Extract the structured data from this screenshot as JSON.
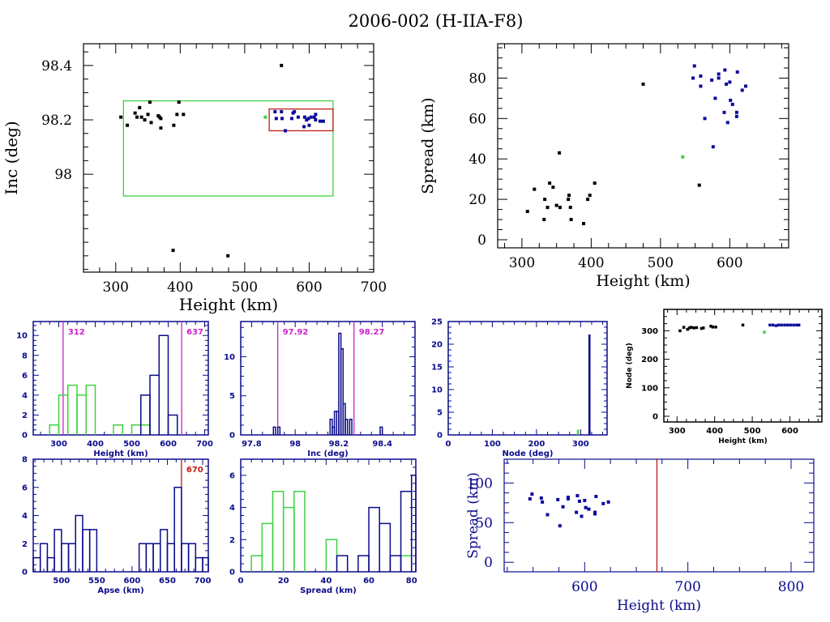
{
  "page_title": "2006-002 (H-IIA-F8)",
  "colors": {
    "black": "#000000",
    "blue": "#0b0b9b",
    "navy": "#0b0b8b",
    "green": "#40d040",
    "magenta": "#cc22cc",
    "red": "#c01818"
  },
  "chart_data": [
    {
      "id": "inc-vs-height",
      "type": "scatter",
      "title": "",
      "xlabel": "Height (km)",
      "ylabel": "Inc (deg)",
      "xlim": [
        250,
        700
      ],
      "ylim": [
        97.64,
        98.48
      ],
      "xticks": [
        300,
        400,
        500,
        600,
        700
      ],
      "yticks": [
        98,
        98.2,
        98.4
      ],
      "ytick_labels": [
        "98",
        "98.2",
        "98.4"
      ],
      "boxes": [
        {
          "name": "green-range-box",
          "color": "green",
          "x": [
            312,
            637
          ],
          "y": [
            97.92,
            98.27
          ]
        },
        {
          "name": "red-cluster-box",
          "color": "red",
          "x": [
            538,
            637
          ],
          "y": [
            98.16,
            98.24
          ]
        }
      ],
      "series": [
        {
          "name": "black",
          "color": "black",
          "points": [
            [
              308,
              98.21
            ],
            [
              318,
              98.18
            ],
            [
              330,
              98.225
            ],
            [
              333,
              98.21
            ],
            [
              337,
              98.245
            ],
            [
              340,
              98.21
            ],
            [
              345,
              98.2
            ],
            [
              350,
              98.22
            ],
            [
              353,
              98.265
            ],
            [
              355,
              98.19
            ],
            [
              366,
              98.215
            ],
            [
              368,
              98.21
            ],
            [
              370,
              98.205
            ],
            [
              370,
              98.17
            ],
            [
              390,
              98.18
            ],
            [
              395,
              98.22
            ],
            [
              398,
              98.265
            ],
            [
              405,
              98.22
            ],
            [
              557,
              98.4
            ],
            [
              389,
              97.72
            ],
            [
              474,
              97.7
            ]
          ]
        },
        {
          "name": "green",
          "color": "green",
          "points": [
            [
              532,
              98.21
            ]
          ]
        },
        {
          "name": "blue",
          "color": "blue",
          "points": [
            [
              547,
              98.23
            ],
            [
              549,
              98.205
            ],
            [
              557,
              98.23
            ],
            [
              558,
              98.205
            ],
            [
              563,
              98.16
            ],
            [
              573,
              98.205
            ],
            [
              575,
              98.225
            ],
            [
              577,
              98.23
            ],
            [
              583,
              98.21
            ],
            [
              592,
              98.175
            ],
            [
              593,
              98.21
            ],
            [
              596,
              98.2
            ],
            [
              599,
              98.205
            ],
            [
              600,
              98.18
            ],
            [
              603,
              98.21
            ],
            [
              608,
              98.21
            ],
            [
              610,
              98.2
            ],
            [
              610,
              98.22
            ],
            [
              617,
              98.195
            ],
            [
              622,
              98.195
            ]
          ]
        }
      ]
    },
    {
      "id": "spread-vs-height",
      "type": "scatter",
      "xlabel": "Height (km)",
      "ylabel": "Spread (km)",
      "xlim": [
        265,
        685
      ],
      "ylim": [
        -4,
        97
      ],
      "xticks": [
        300,
        400,
        500,
        600
      ],
      "yticks": [
        0,
        20,
        40,
        60,
        80
      ],
      "series": [
        {
          "name": "black",
          "color": "black",
          "points": [
            [
              308,
              14
            ],
            [
              318,
              25
            ],
            [
              332,
              10
            ],
            [
              333,
              20
            ],
            [
              337,
              16
            ],
            [
              340,
              28
            ],
            [
              345,
              26
            ],
            [
              350,
              17
            ],
            [
              355,
              16
            ],
            [
              354,
              43
            ],
            [
              367,
              20
            ],
            [
              368,
              22
            ],
            [
              370,
              16
            ],
            [
              371,
              10
            ],
            [
              389,
              8
            ],
            [
              395,
              20
            ],
            [
              398,
              22
            ],
            [
              405,
              28
            ],
            [
              475,
              77
            ],
            [
              556,
              27
            ]
          ]
        },
        {
          "name": "green",
          "color": "green",
          "points": [
            [
              532,
              41
            ]
          ]
        },
        {
          "name": "blue",
          "color": "blue",
          "points": [
            [
              547,
              80
            ],
            [
              549,
              86
            ],
            [
              558,
              81
            ],
            [
              558,
              76
            ],
            [
              564,
              60
            ],
            [
              574,
              79
            ],
            [
              576,
              46
            ],
            [
              579,
              70
            ],
            [
              584,
              82
            ],
            [
              584,
              80
            ],
            [
              592,
              63
            ],
            [
              593,
              84
            ],
            [
              595,
              77
            ],
            [
              597,
              58
            ],
            [
              600,
              78
            ],
            [
              601,
              69
            ],
            [
              604,
              67
            ],
            [
              610,
              61
            ],
            [
              610,
              63
            ],
            [
              611,
              83
            ],
            [
              618,
              74
            ],
            [
              623,
              76
            ]
          ]
        }
      ]
    },
    {
      "id": "height-histogram",
      "type": "bar",
      "histogram": true,
      "xlabel": "Height (km)",
      "ylabel": "",
      "xlim": [
        230,
        710
      ],
      "ylim": [
        0,
        11.4
      ],
      "xticks": [
        300,
        400,
        500,
        600,
        700
      ],
      "yticks": [
        0,
        2,
        4,
        6,
        8,
        10
      ],
      "bin_width": 25,
      "series": [
        {
          "name": "green",
          "color": "green",
          "bins": [
            [
              287.5,
              1
            ],
            [
              312.5,
              4
            ],
            [
              337.5,
              5
            ],
            [
              362.5,
              4
            ],
            [
              387.5,
              5
            ],
            [
              462.5,
              1
            ],
            [
              512.5,
              1
            ],
            [
              537.5,
              1
            ]
          ]
        },
        {
          "name": "navy",
          "color": "navy",
          "bins": [
            [
              537.5,
              4
            ],
            [
              562.5,
              6
            ],
            [
              587.5,
              10
            ],
            [
              612.5,
              2
            ]
          ]
        }
      ],
      "markers": [
        {
          "value": 312,
          "label": "312",
          "color": "magenta"
        },
        {
          "value": 637,
          "label": "637",
          "color": "magenta"
        }
      ]
    },
    {
      "id": "inc-histogram",
      "type": "bar",
      "histogram": true,
      "xlabel": "Inc (deg)",
      "xlim": [
        97.75,
        98.55
      ],
      "ylim": [
        0,
        14.5
      ],
      "xticks": [
        97.8,
        98,
        98.2,
        98.4
      ],
      "xtick_labels": [
        "97.8",
        "98",
        "98.2",
        "98.4"
      ],
      "yticks": [
        0,
        5,
        10
      ],
      "bin_width": 0.01,
      "series": [
        {
          "name": "navy",
          "color": "navy",
          "bins": [
            [
              97.905,
              1
            ],
            [
              97.925,
              1
            ],
            [
              98.165,
              2
            ],
            [
              98.175,
              1
            ],
            [
              98.185,
              3
            ],
            [
              98.195,
              3
            ],
            [
              98.205,
              13
            ],
            [
              98.215,
              11
            ],
            [
              98.225,
              4
            ],
            [
              98.235,
              2
            ],
            [
              98.255,
              2
            ],
            [
              98.395,
              1
            ]
          ]
        }
      ],
      "markers": [
        {
          "value": 97.92,
          "label": "97.92",
          "color": "magenta"
        },
        {
          "value": 98.27,
          "label": "98.27",
          "color": "magenta"
        }
      ]
    },
    {
      "id": "node-histogram",
      "type": "bar",
      "histogram": true,
      "xlabel": "Node (deg)",
      "xlim": [
        0,
        360
      ],
      "ylim": [
        0,
        25
      ],
      "xticks": [
        0,
        100,
        200,
        300
      ],
      "yticks": [
        0,
        5,
        10,
        15,
        20,
        25
      ],
      "series": [
        {
          "name": "green",
          "color": "green",
          "bins": [
            [
              294,
              1
            ]
          ]
        },
        {
          "name": "navy",
          "color": "navy",
          "bins": [
            [
              320,
              22
            ]
          ]
        }
      ]
    },
    {
      "id": "node-vs-height",
      "type": "scatter",
      "xlabel": "Height (km)",
      "ylabel": "Node (deg)",
      "xlim": [
        265,
        685
      ],
      "ylim": [
        -20,
        375
      ],
      "xticks": [
        300,
        400,
        500,
        600
      ],
      "yticks": [
        0,
        100,
        200,
        300
      ],
      "series": [
        {
          "name": "black",
          "color": "black",
          "points": [
            [
              308,
              300
            ],
            [
              318,
              312
            ],
            [
              328,
              305
            ],
            [
              333,
              310
            ],
            [
              338,
              312
            ],
            [
              345,
              310
            ],
            [
              352,
              311
            ],
            [
              365,
              308
            ],
            [
              370,
              310
            ],
            [
              390,
              316
            ],
            [
              395,
              313
            ],
            [
              403,
              313
            ],
            [
              475,
              320
            ]
          ]
        },
        {
          "name": "green",
          "color": "green",
          "points": [
            [
              532,
              295
            ]
          ]
        },
        {
          "name": "blue",
          "color": "blue",
          "points": [
            [
              547,
              320
            ],
            [
              555,
              320
            ],
            [
              563,
              318
            ],
            [
              570,
              320
            ],
            [
              578,
              320
            ],
            [
              586,
              320
            ],
            [
              594,
              320
            ],
            [
              602,
              320
            ],
            [
              610,
              320
            ],
            [
              618,
              320
            ],
            [
              624,
              320
            ]
          ]
        }
      ]
    },
    {
      "id": "apse-histogram",
      "type": "bar",
      "histogram": true,
      "xlabel": "Apse (km)",
      "xlim": [
        460,
        708
      ],
      "ylim": [
        0,
        8
      ],
      "xticks": [
        500,
        550,
        600,
        650,
        700
      ],
      "yticks": [
        0,
        2,
        4,
        6,
        8
      ],
      "bin_width": 10,
      "series": [
        {
          "name": "navy",
          "color": "navy",
          "bins": [
            [
              465,
              1
            ],
            [
              475,
              2
            ],
            [
              485,
              1
            ],
            [
              495,
              3
            ],
            [
              505,
              2
            ],
            [
              515,
              2
            ],
            [
              525,
              4
            ],
            [
              535,
              3
            ],
            [
              545,
              3
            ],
            [
              615,
              2
            ],
            [
              625,
              2
            ],
            [
              635,
              2
            ],
            [
              645,
              3
            ],
            [
              655,
              2
            ],
            [
              665,
              6
            ],
            [
              675,
              2
            ],
            [
              685,
              2
            ],
            [
              695,
              1
            ],
            [
              705,
              1
            ]
          ]
        }
      ],
      "markers": [
        {
          "value": 670,
          "label": "670",
          "color": "red"
        }
      ]
    },
    {
      "id": "spread-histogram",
      "type": "bar",
      "histogram": true,
      "xlabel": "Spread (km)",
      "xlim": [
        0,
        82
      ],
      "ylim": [
        0,
        7
      ],
      "xticks": [
        0,
        20,
        40,
        60,
        80
      ],
      "yticks": [
        0,
        2,
        4,
        6
      ],
      "bin_width": 5,
      "series": [
        {
          "name": "green",
          "color": "green",
          "bins": [
            [
              7.5,
              1
            ],
            [
              12.5,
              3
            ],
            [
              17.5,
              5
            ],
            [
              22.5,
              4
            ],
            [
              27.5,
              5
            ],
            [
              42.5,
              2
            ],
            [
              77.5,
              1
            ]
          ]
        },
        {
          "name": "navy",
          "color": "navy",
          "bins": [
            [
              47.5,
              1
            ],
            [
              57.5,
              1
            ],
            [
              62.5,
              4
            ],
            [
              67.5,
              3
            ],
            [
              72.5,
              1
            ],
            [
              77.5,
              5
            ],
            [
              82.5,
              6
            ]
          ]
        }
      ]
    },
    {
      "id": "spread-vs-height-cluster",
      "type": "scatter",
      "xlabel": "Height (km)",
      "ylabel": "Spread (km)",
      "xlim": [
        522,
        822
      ],
      "ylim": [
        -12,
        130
      ],
      "xticks": [
        600,
        700,
        800
      ],
      "yticks": [
        0,
        50,
        100
      ],
      "series": [
        {
          "name": "blue",
          "color": "blue",
          "points": [
            [
              547,
              80
            ],
            [
              549,
              86
            ],
            [
              558,
              81
            ],
            [
              559,
              76
            ],
            [
              564,
              60
            ],
            [
              574,
              79
            ],
            [
              576,
              46
            ],
            [
              579,
              70
            ],
            [
              584,
              82
            ],
            [
              584,
              80
            ],
            [
              592,
              63
            ],
            [
              593,
              84
            ],
            [
              595,
              77
            ],
            [
              597,
              58
            ],
            [
              600,
              78
            ],
            [
              601,
              69
            ],
            [
              604,
              67
            ],
            [
              610,
              61
            ],
            [
              610,
              63
            ],
            [
              611,
              83
            ],
            [
              618,
              74
            ],
            [
              623,
              76
            ]
          ]
        }
      ],
      "markers": [
        {
          "value": 670,
          "label": "",
          "color": "red"
        }
      ]
    }
  ]
}
